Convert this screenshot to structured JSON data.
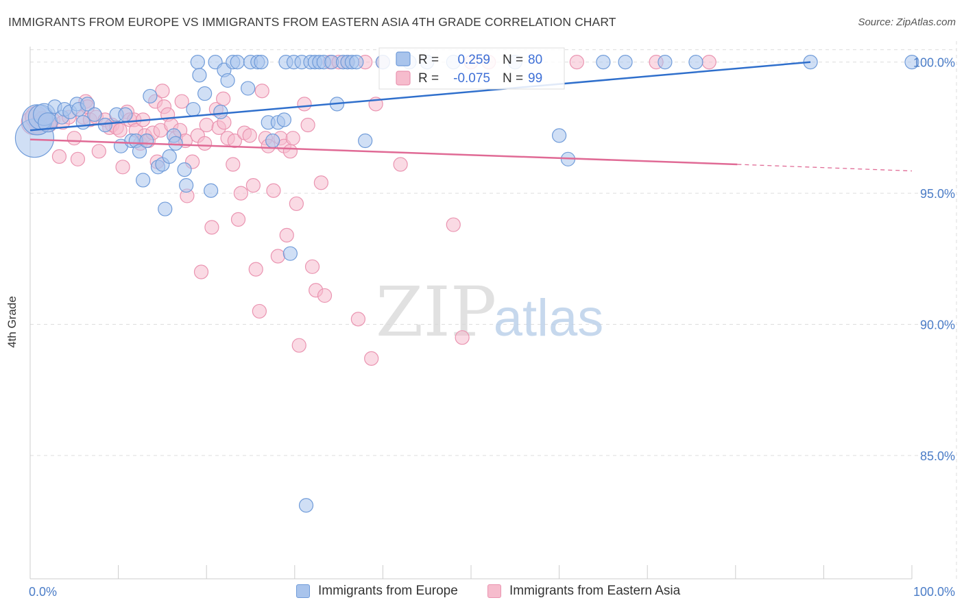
{
  "title": "IMMIGRANTS FROM EUROPE VS IMMIGRANTS FROM EASTERN ASIA 4TH GRADE CORRELATION CHART",
  "source": "Source: ZipAtlas.com",
  "watermark": {
    "zip": "ZIP",
    "atlas": "atlas"
  },
  "colors": {
    "europe_fill": "#a9c4ec",
    "europe_stroke": "#6f9bd9",
    "europe_line": "#2f6fcc",
    "asia_fill": "#f6bccd",
    "asia_stroke": "#ea93b0",
    "asia_line": "#e06a95",
    "value_text": "#3d6fd6",
    "grid": "#dddddd"
  },
  "legend_top": {
    "rows": [
      {
        "r_label": "R =",
        "r_value": "0.259",
        "n_label": "N =",
        "n_value": "80"
      },
      {
        "r_label": "R =",
        "r_value": "-0.075",
        "n_label": "N =",
        "n_value": "99"
      }
    ]
  },
  "chart_data": {
    "type": "scatter",
    "title": "IMMIGRANTS FROM EUROPE VS IMMIGRANTS FROM EASTERN ASIA 4TH GRADE CORRELATION CHART",
    "xlabel": "",
    "ylabel": "4th Grade",
    "xlim": [
      0,
      100
    ],
    "ylim": [
      80.3,
      100.8
    ],
    "x_tick_labels": [
      {
        "value": 0,
        "label": "0.0%"
      },
      {
        "value": 100,
        "label": "100.0%"
      }
    ],
    "y_tick_labels": [
      {
        "value": 100,
        "label": "100.0%"
      },
      {
        "value": 95,
        "label": "95.0%"
      },
      {
        "value": 90,
        "label": "90.0%"
      },
      {
        "value": 85,
        "label": "85.0%"
      }
    ],
    "grid": "dashed horizontal",
    "legend": "top-center and bottom",
    "series": [
      {
        "name": "Immigrants from Europe",
        "r": 0.259,
        "n": 80,
        "trend": {
          "x": [
            0,
            88.5
          ],
          "y": [
            97.4,
            100
          ]
        },
        "points": [
          [
            0.5,
            97.1,
            28
          ],
          [
            0.8,
            97.8,
            22
          ],
          [
            1.2,
            97.9,
            18
          ],
          [
            1.6,
            98.0,
            16
          ],
          [
            2.0,
            97.7,
            14
          ],
          [
            2.8,
            98.3,
            10
          ],
          [
            3.6,
            97.9,
            10
          ],
          [
            3.9,
            98.2,
            10
          ],
          [
            4.5,
            98.1,
            10
          ],
          [
            5.3,
            98.4,
            10
          ],
          [
            5.5,
            98.2,
            10
          ],
          [
            6.0,
            97.7,
            10
          ],
          [
            6.5,
            98.4,
            10
          ],
          [
            7.3,
            98.0,
            10
          ],
          [
            8.5,
            97.6,
            10
          ],
          [
            9.8,
            98.0,
            10
          ],
          [
            10.3,
            96.8,
            10
          ],
          [
            10.8,
            98.0,
            10
          ],
          [
            11.5,
            97.0,
            10
          ],
          [
            12.0,
            97.0,
            10
          ],
          [
            12.4,
            96.6,
            10
          ],
          [
            12.8,
            95.5,
            10
          ],
          [
            13.2,
            97.0,
            10
          ],
          [
            13.6,
            98.7,
            10
          ],
          [
            14.5,
            96.0,
            10
          ],
          [
            15.0,
            96.1,
            10
          ],
          [
            15.3,
            94.4,
            10
          ],
          [
            15.8,
            96.4,
            10
          ],
          [
            16.3,
            97.2,
            10
          ],
          [
            16.5,
            96.9,
            10
          ],
          [
            17.5,
            95.9,
            10
          ],
          [
            17.7,
            95.3,
            10
          ],
          [
            18.5,
            98.2,
            10
          ],
          [
            19.0,
            100,
            10
          ],
          [
            19.2,
            99.5,
            10
          ],
          [
            19.8,
            98.8,
            10
          ],
          [
            20.5,
            95.1,
            10
          ],
          [
            21.0,
            100,
            10
          ],
          [
            21.6,
            98.1,
            10
          ],
          [
            22.0,
            99.7,
            10
          ],
          [
            22.4,
            99.3,
            10
          ],
          [
            23.0,
            100,
            10
          ],
          [
            23.5,
            100,
            10
          ],
          [
            24.7,
            99.0,
            10
          ],
          [
            25.0,
            100,
            10
          ],
          [
            25.8,
            100,
            10
          ],
          [
            26.2,
            100,
            10
          ],
          [
            27.0,
            97.7,
            10
          ],
          [
            27.5,
            97.0,
            10
          ],
          [
            28.1,
            97.7,
            10
          ],
          [
            28.8,
            97.8,
            10
          ],
          [
            29.0,
            100,
            10
          ],
          [
            29.5,
            92.7,
            10
          ],
          [
            29.9,
            100,
            10
          ],
          [
            30.8,
            100,
            10
          ],
          [
            31.3,
            83.1,
            10
          ],
          [
            31.8,
            100,
            10
          ],
          [
            32.3,
            100,
            10
          ],
          [
            32.8,
            100,
            10
          ],
          [
            33.3,
            100,
            10
          ],
          [
            34.2,
            100,
            10
          ],
          [
            34.8,
            98.4,
            10
          ],
          [
            35.5,
            100,
            10
          ],
          [
            36.0,
            100,
            10
          ],
          [
            36.5,
            100,
            10
          ],
          [
            37.0,
            100,
            10
          ],
          [
            38.0,
            97.0,
            10
          ],
          [
            40.0,
            100,
            10
          ],
          [
            43.0,
            100,
            10
          ],
          [
            45.0,
            100,
            10
          ],
          [
            48.0,
            100,
            10
          ],
          [
            55.0,
            100,
            10
          ],
          [
            60.0,
            97.2,
            10
          ],
          [
            61.0,
            96.3,
            10
          ],
          [
            65.0,
            100,
            10
          ],
          [
            67.5,
            100,
            10
          ],
          [
            72.0,
            100,
            10
          ],
          [
            75.5,
            100,
            10
          ],
          [
            88.5,
            100,
            10
          ],
          [
            100.0,
            100,
            10
          ]
        ]
      },
      {
        "name": "Immigrants from Eastern Asia",
        "r": -0.075,
        "n": 99,
        "trend": {
          "x": [
            0,
            80.2,
            100
          ],
          "y": [
            97.05,
            96.1,
            95.85
          ],
          "dashed_from": 80.2
        },
        "points": [
          [
            0.4,
            97.7,
            18
          ],
          [
            0.7,
            97.9,
            16
          ],
          [
            1.0,
            97.6,
            14
          ],
          [
            1.4,
            97.8,
            12
          ],
          [
            1.8,
            97.7,
            12
          ],
          [
            2.2,
            97.6,
            10
          ],
          [
            2.6,
            97.8,
            10
          ],
          [
            3.3,
            96.4,
            10
          ],
          [
            3.7,
            97.7,
            10
          ],
          [
            4.4,
            97.9,
            10
          ],
          [
            5.0,
            97.1,
            10
          ],
          [
            5.4,
            96.3,
            10
          ],
          [
            6.0,
            97.9,
            10
          ],
          [
            6.3,
            98.5,
            10
          ],
          [
            6.5,
            98.3,
            10
          ],
          [
            6.8,
            97.8,
            10
          ],
          [
            7.5,
            97.9,
            10
          ],
          [
            7.8,
            96.6,
            10
          ],
          [
            8.5,
            97.8,
            10
          ],
          [
            9.0,
            97.5,
            10
          ],
          [
            9.3,
            97.6,
            10
          ],
          [
            9.8,
            97.5,
            10
          ],
          [
            10.2,
            97.4,
            10
          ],
          [
            10.5,
            96.0,
            10
          ],
          [
            11.0,
            98.1,
            10
          ],
          [
            11.3,
            97.8,
            10
          ],
          [
            11.8,
            97.8,
            10
          ],
          [
            12.0,
            97.4,
            10
          ],
          [
            12.5,
            96.9,
            10
          ],
          [
            12.8,
            97.8,
            10
          ],
          [
            13.0,
            97.2,
            10
          ],
          [
            13.4,
            97.0,
            10
          ],
          [
            13.9,
            97.3,
            10
          ],
          [
            14.2,
            98.5,
            10
          ],
          [
            14.4,
            96.2,
            10
          ],
          [
            14.8,
            97.4,
            10
          ],
          [
            15.0,
            98.9,
            10
          ],
          [
            15.2,
            98.3,
            10
          ],
          [
            15.6,
            98.0,
            10
          ],
          [
            16.0,
            97.6,
            10
          ],
          [
            16.5,
            97.1,
            10
          ],
          [
            17.0,
            97.4,
            10
          ],
          [
            17.2,
            98.5,
            10
          ],
          [
            17.6,
            97.0,
            10
          ],
          [
            17.8,
            94.9,
            10
          ],
          [
            18.4,
            96.2,
            10
          ],
          [
            19.0,
            97.2,
            10
          ],
          [
            19.4,
            92.0,
            10
          ],
          [
            19.8,
            96.9,
            10
          ],
          [
            20.0,
            97.6,
            10
          ],
          [
            20.6,
            93.7,
            10
          ],
          [
            21.1,
            98.2,
            10
          ],
          [
            21.4,
            97.5,
            10
          ],
          [
            21.9,
            98.6,
            10
          ],
          [
            22.0,
            97.7,
            10
          ],
          [
            22.4,
            97.1,
            10
          ],
          [
            23.0,
            96.1,
            10
          ],
          [
            23.2,
            97.0,
            10
          ],
          [
            23.6,
            94.0,
            10
          ],
          [
            23.9,
            95.0,
            10
          ],
          [
            24.3,
            97.3,
            10
          ],
          [
            24.9,
            97.2,
            10
          ],
          [
            25.3,
            95.3,
            10
          ],
          [
            25.6,
            92.1,
            10
          ],
          [
            26.0,
            90.5,
            10
          ],
          [
            26.3,
            98.9,
            10
          ],
          [
            26.7,
            97.1,
            10
          ],
          [
            27.0,
            96.8,
            10
          ],
          [
            27.6,
            95.1,
            10
          ],
          [
            28.1,
            92.6,
            10
          ],
          [
            28.4,
            97.1,
            10
          ],
          [
            28.8,
            96.8,
            10
          ],
          [
            29.1,
            93.4,
            10
          ],
          [
            29.5,
            96.6,
            10
          ],
          [
            29.8,
            97.1,
            10
          ],
          [
            30.2,
            94.6,
            10
          ],
          [
            30.5,
            89.2,
            10
          ],
          [
            31.1,
            98.4,
            10
          ],
          [
            31.5,
            97.6,
            10
          ],
          [
            32.0,
            92.2,
            10
          ],
          [
            32.4,
            91.3,
            10
          ],
          [
            33.0,
            95.4,
            10
          ],
          [
            33.4,
            91.1,
            10
          ],
          [
            34.0,
            100,
            10
          ],
          [
            35.0,
            100,
            10
          ],
          [
            36.0,
            100,
            10
          ],
          [
            37.2,
            90.2,
            10
          ],
          [
            38.0,
            100,
            10
          ],
          [
            38.7,
            88.7,
            10
          ],
          [
            39.2,
            98.4,
            10
          ],
          [
            40.0,
            100,
            10
          ],
          [
            42.0,
            96.1,
            10
          ],
          [
            48.0,
            93.8,
            10
          ],
          [
            49.0,
            89.5,
            10
          ],
          [
            50.0,
            100,
            10
          ],
          [
            52.0,
            100,
            10
          ],
          [
            62.0,
            100,
            10
          ],
          [
            71.0,
            100,
            10
          ],
          [
            77.0,
            100,
            10
          ]
        ]
      }
    ]
  }
}
